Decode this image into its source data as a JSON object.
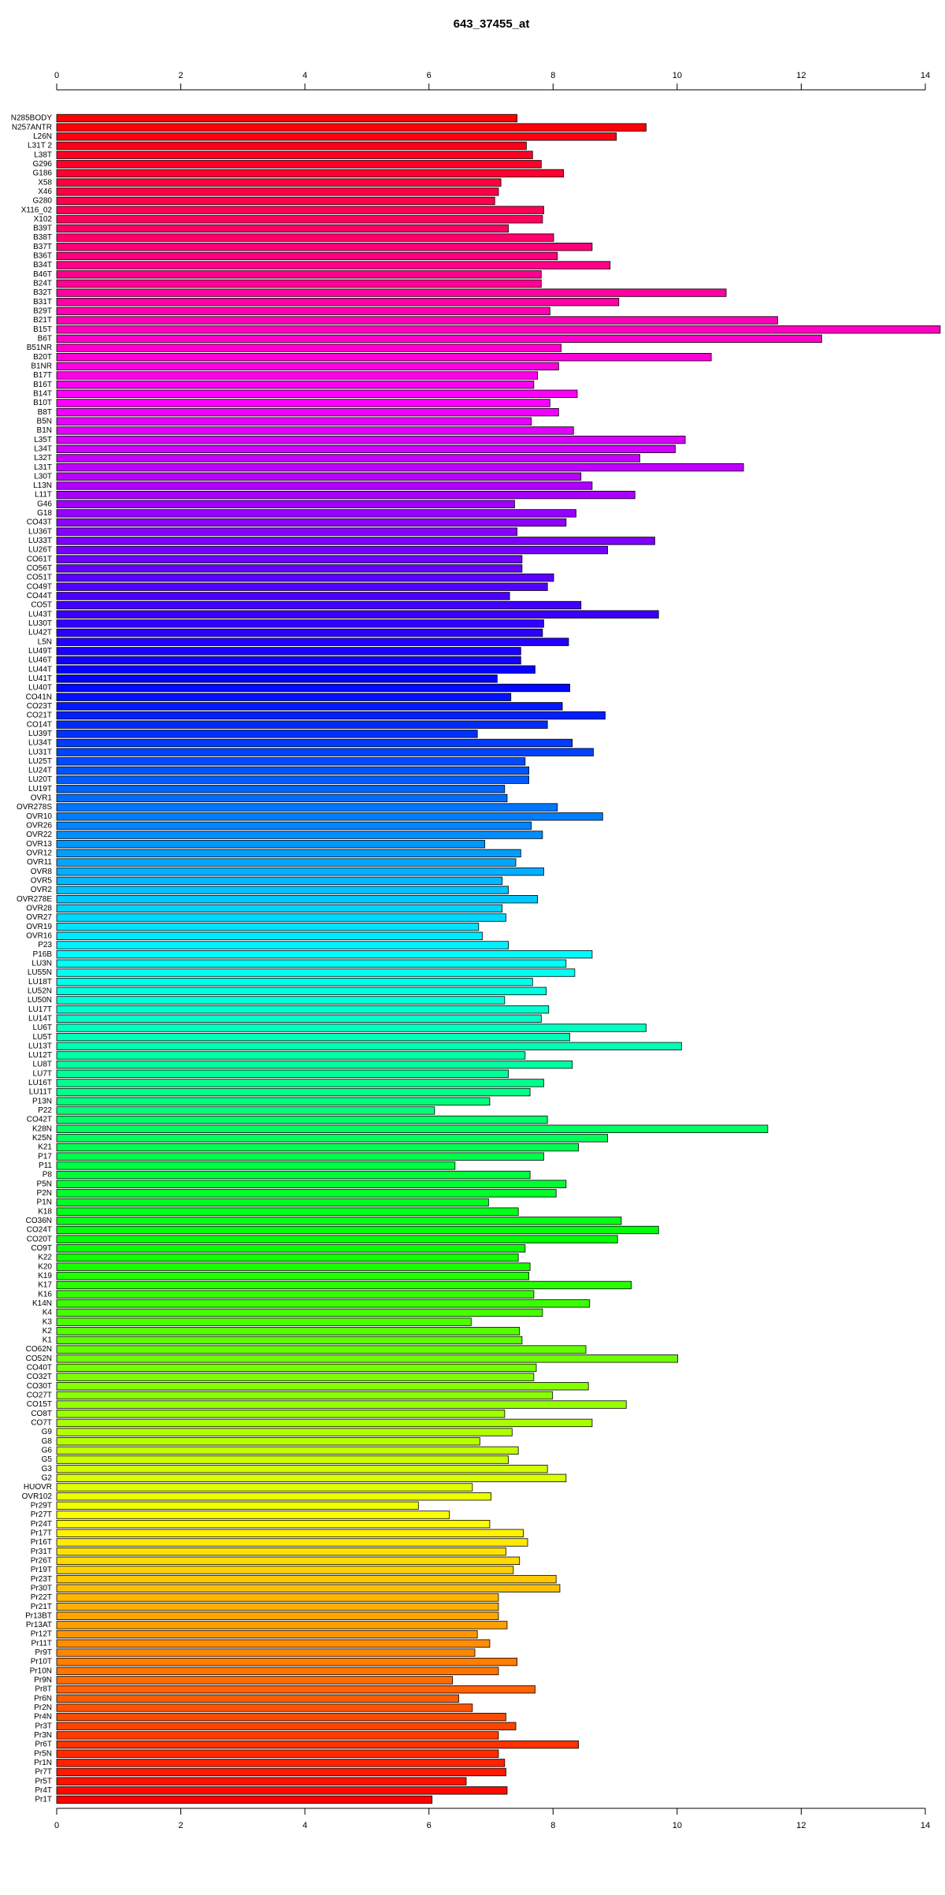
{
  "chart_data": {
    "type": "barh",
    "title": "643_37455_at",
    "palette": "rainbow",
    "categories": [
      "N285BODY",
      "N257ANTR",
      "L26N",
      "L31T 2",
      "L38T",
      "G296",
      "G186",
      "X58",
      "X46",
      "G280",
      "X116_02",
      "X102",
      "B39T",
      "B38T",
      "B37T",
      "B36T",
      "B34T",
      "B46T",
      "B24T",
      "B32T",
      "B31T",
      "B29T",
      "B21T",
      "B15T",
      "B6T",
      "B51NR",
      "B20T",
      "B1NR",
      "B17T",
      "B16T",
      "B14T",
      "B10T",
      "B8T",
      "B5N",
      "B1N",
      "L35T",
      "L34T",
      "L32T",
      "L31T",
      "L30T",
      "L13N",
      "L11T",
      "G46",
      "G18",
      "CO43T",
      "LU36T",
      "LU33T",
      "LU26T",
      "CO61T",
      "CO56T",
      "CO51T",
      "CO49T",
      "CO44T",
      "CO5T",
      "LU43T",
      "LU30T",
      "LU42T",
      "L5N",
      "LU49T",
      "LU46T",
      "LU44T",
      "LU41T",
      "LU40T",
      "CO41N",
      "CO23T",
      "CO21T",
      "CO14T",
      "LU39T",
      "LU34T",
      "LU31T",
      "LU25T",
      "LU24T",
      "LU20T",
      "LU19T",
      "OVR1",
      "OVR278S",
      "OVR10",
      "OVR26",
      "OVR22",
      "OVR13",
      "OVR12",
      "OVR11",
      "OVR8",
      "OVR5",
      "OVR2",
      "OVR278E",
      "OVR28",
      "OVR27",
      "OVR19",
      "OVR16",
      "P23",
      "P16B",
      "LU3N",
      "LU55N",
      "LU18T",
      "LU52N",
      "LU50N",
      "LU17T",
      "LU14T",
      "LU6T",
      "LU5T",
      "LU13T",
      "LU12T",
      "LU8T",
      "LU7T",
      "LU16T",
      "LU11T",
      "P13N",
      "P22",
      "CO42T",
      "K28N",
      "K25N",
      "K21",
      "P17",
      "P11",
      "P8",
      "P5N",
      "P2N",
      "P1N",
      "K18",
      "CO36N",
      "CO24T",
      "CO20T",
      "CO9T",
      "K22",
      "K20",
      "K19",
      "K17",
      "K16",
      "K14N",
      "K4",
      "K3",
      "K2",
      "K1",
      "CO62N",
      "CO52N",
      "CO40T",
      "CO32T",
      "CO30T",
      "CO27T",
      "CO15T",
      "CO8T",
      "CO7T",
      "G9",
      "G8",
      "G6",
      "G5",
      "G3",
      "G2",
      "HUOVR",
      "OVR102",
      "Pr29T",
      "Pr27T",
      "Pr24T",
      "Pr17T",
      "Pr16T",
      "Pr31T",
      "Pr26T",
      "Pr19T",
      "Pr23T",
      "Pr30T",
      "Pr22T",
      "Pr21T",
      "Pr13BT",
      "Pr13AT",
      "Pr12T",
      "Pr11T",
      "Pr9T",
      "Pr10T",
      "Pr10N",
      "Pr9N",
      "Pr8T",
      "Pr6N",
      "Pr2N",
      "Pr4N",
      "Pr3T",
      "Pr3N",
      "Pr6T",
      "Pr5N",
      "Pr1N",
      "Pr7T",
      "Pr5T",
      "Pr4T",
      "Pr1T"
    ],
    "values": [
      7.42,
      9.5,
      9.02,
      7.57,
      7.67,
      7.81,
      8.17,
      7.16,
      7.12,
      7.06,
      7.85,
      7.83,
      7.28,
      8.01,
      8.63,
      8.07,
      8.92,
      7.81,
      7.81,
      10.79,
      9.06,
      7.95,
      11.62,
      14.24,
      12.33,
      8.13,
      10.55,
      8.09,
      7.75,
      7.69,
      8.39,
      7.95,
      8.09,
      7.65,
      8.33,
      10.13,
      9.97,
      9.4,
      11.07,
      8.45,
      8.63,
      9.32,
      7.38,
      8.37,
      8.21,
      7.42,
      9.64,
      8.88,
      7.5,
      7.5,
      8.01,
      7.91,
      7.3,
      8.45,
      9.7,
      7.85,
      7.83,
      8.25,
      7.48,
      7.48,
      7.71,
      7.1,
      8.27,
      7.32,
      8.15,
      8.84,
      7.91,
      6.78,
      8.31,
      8.65,
      7.55,
      7.61,
      7.61,
      7.22,
      7.26,
      8.07,
      8.8,
      7.65,
      7.83,
      6.9,
      7.48,
      7.4,
      7.85,
      7.18,
      7.28,
      7.75,
      7.18,
      7.24,
      6.8,
      6.86,
      7.28,
      8.63,
      8.21,
      8.35,
      7.67,
      7.89,
      7.22,
      7.93,
      7.81,
      9.5,
      8.27,
      10.07,
      7.55,
      8.31,
      7.28,
      7.85,
      7.63,
      6.98,
      6.09,
      7.91,
      11.46,
      8.88,
      8.41,
      7.85,
      6.42,
      7.63,
      8.21,
      8.05,
      6.96,
      7.44,
      9.1,
      9.7,
      9.04,
      7.55,
      7.44,
      7.63,
      7.61,
      9.26,
      7.69,
      8.59,
      7.83,
      6.68,
      7.46,
      7.5,
      8.53,
      10.01,
      7.73,
      7.69,
      8.57,
      7.99,
      9.18,
      7.22,
      8.63,
      7.34,
      6.82,
      7.44,
      7.28,
      7.91,
      8.21,
      6.7,
      7.0,
      5.83,
      6.33,
      6.98,
      7.52,
      7.59,
      7.24,
      7.46,
      7.36,
      8.05,
      8.11,
      7.12,
      7.12,
      7.12,
      7.26,
      6.78,
      6.98,
      6.74,
      7.42,
      7.12,
      6.38,
      7.71,
      6.48,
      6.7,
      7.24,
      7.4,
      7.12,
      8.41,
      7.12,
      7.22,
      7.24,
      6.6,
      7.26,
      6.05
    ],
    "xlim": [
      0,
      14
    ],
    "xticks": [
      0,
      2,
      4,
      6,
      8,
      10,
      12,
      14
    ]
  }
}
